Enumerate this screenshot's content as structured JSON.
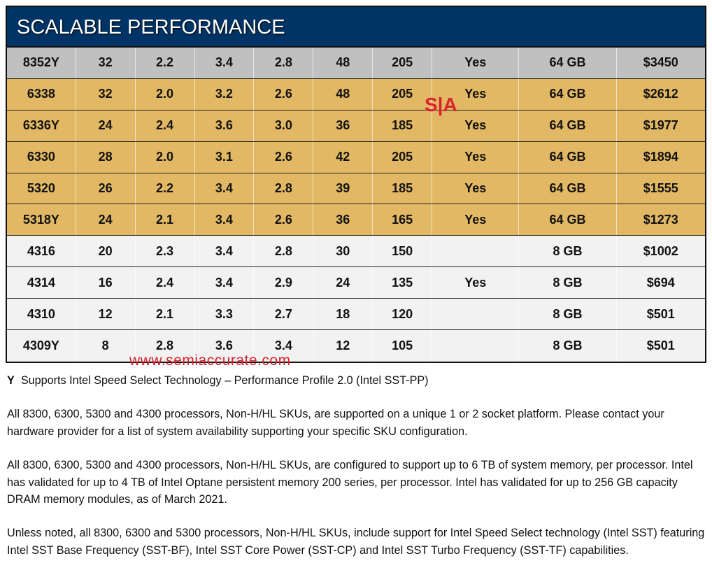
{
  "title": "SCALABLE PERFORMANCE",
  "rows": [
    {
      "cells": [
        "8352Y",
        "32",
        "2.2",
        "3.4",
        "2.8",
        "48",
        "205",
        "Yes",
        "64 GB",
        "$3450"
      ],
      "color": "#c0c0c0"
    },
    {
      "cells": [
        "6338",
        "32",
        "2.0",
        "3.2",
        "2.6",
        "48",
        "205",
        "Yes",
        "64 GB",
        "$2612"
      ],
      "color": "#e2b864"
    },
    {
      "cells": [
        "6336Y",
        "24",
        "2.4",
        "3.6",
        "3.0",
        "36",
        "185",
        "Yes",
        "64 GB",
        "$1977"
      ],
      "color": "#e2b864"
    },
    {
      "cells": [
        "6330",
        "28",
        "2.0",
        "3.1",
        "2.6",
        "42",
        "205",
        "Yes",
        "64 GB",
        "$1894"
      ],
      "color": "#e2b864"
    },
    {
      "cells": [
        "5320",
        "26",
        "2.2",
        "3.4",
        "2.8",
        "39",
        "185",
        "Yes",
        "64 GB",
        "$1555"
      ],
      "color": "#e2b864"
    },
    {
      "cells": [
        "5318Y",
        "24",
        "2.1",
        "3.4",
        "2.6",
        "36",
        "165",
        "Yes",
        "64 GB",
        "$1273"
      ],
      "color": "#e2b864"
    },
    {
      "cells": [
        "4316",
        "20",
        "2.3",
        "3.4",
        "2.8",
        "30",
        "150",
        "",
        "8 GB",
        "$1002"
      ],
      "color": "#f2f2f2"
    },
    {
      "cells": [
        "4314",
        "16",
        "2.4",
        "3.4",
        "2.9",
        "24",
        "135",
        "Yes",
        "8 GB",
        "$694"
      ],
      "color": "#f2f2f2"
    },
    {
      "cells": [
        "4310",
        "12",
        "2.1",
        "3.3",
        "2.7",
        "18",
        "120",
        "",
        "8 GB",
        "$501"
      ],
      "color": "#f2f2f2"
    },
    {
      "cells": [
        "4309Y",
        "8",
        "2.8",
        "3.6",
        "3.4",
        "12",
        "105",
        "",
        "8 GB",
        "$501"
      ],
      "color": "#f2f2f2"
    }
  ],
  "watermark": {
    "logo": "S|A",
    "url": "www.semiaccurate.com"
  },
  "footnote": {
    "key": "Y",
    "text": "Supports Intel Speed Select Technology – Performance Profile 2.0 (Intel SST-PP)"
  },
  "paragraphs": [
    "All 8300, 6300, 5300 and 4300 processors, Non-H/HL SKUs, are supported on a unique 1 or 2 socket platform.  Please contact your hardware provider for a list of system availability supporting your specific SKU configuration.",
    "All 8300, 6300, 5300 and 4300 processors, Non-H/HL SKUs, are configured to support up to 6 TB of system memory, per processor. Intel has validated for up to 4 TB of Intel Optane persistent memory 200 series, per processor. Intel has validated for up to 256 GB capacity DRAM memory modules, as of March 2021.",
    "Unless noted, all 8300, 6300 and 5300 processors, Non-H/HL SKUs, include support for Intel Speed Select technology (Intel SST) featuring Intel SST Base Frequency (SST-BF), Intel SST Core Power (SST-CP) and Intel SST Turbo Frequency (SST-TF) capabilities."
  ]
}
